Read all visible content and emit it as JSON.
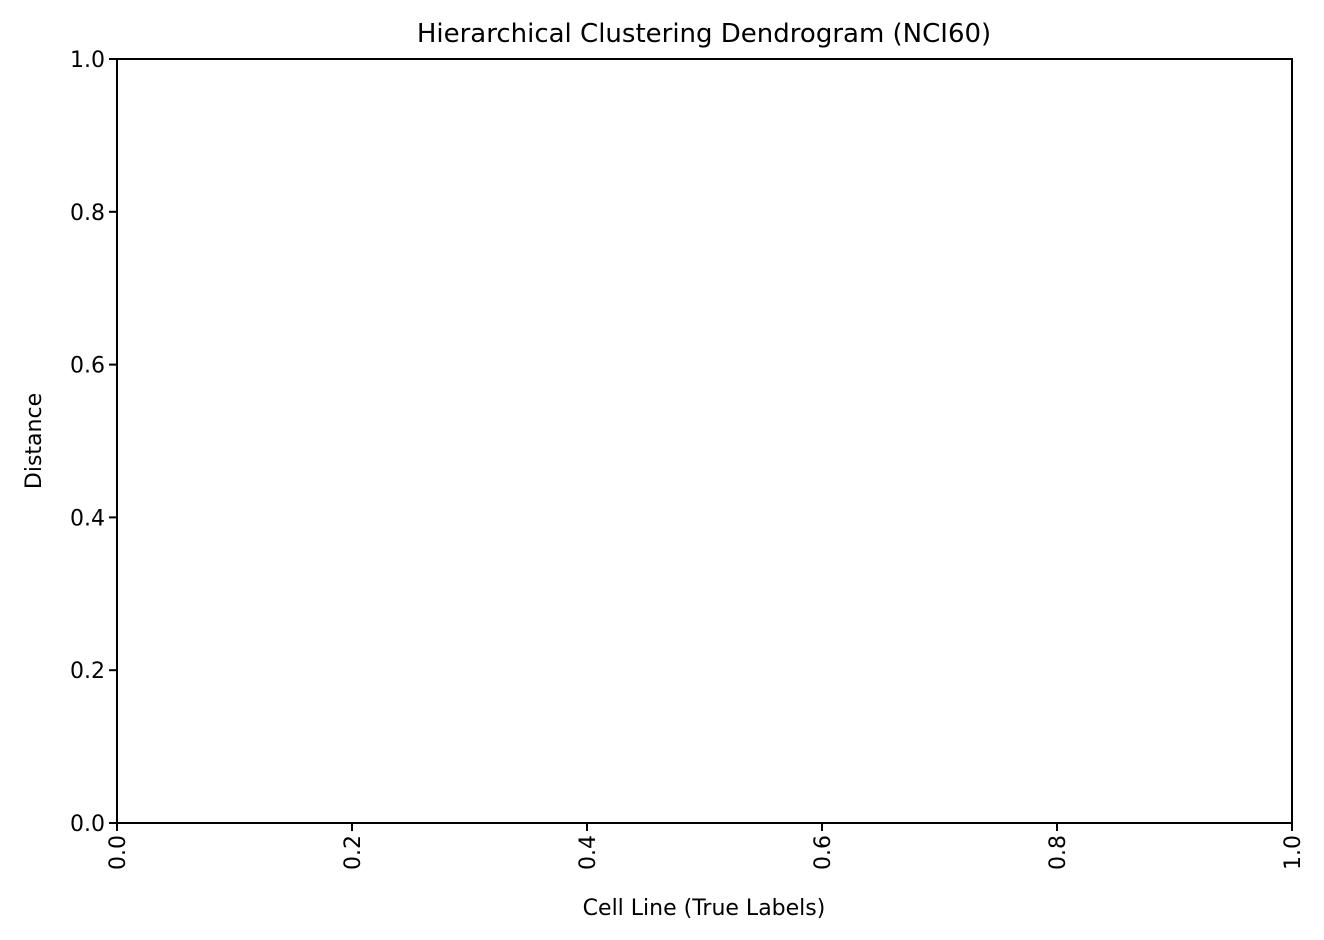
{
  "chart_data": {
    "type": "dendrogram",
    "title": "Hierarchical Clustering Dendrogram (NCI60)",
    "xlabel": "Cell Line (True Labels)",
    "ylabel": "Distance",
    "xlim": [
      0.0,
      1.0
    ],
    "ylim": [
      0.0,
      1.0
    ],
    "x_ticks": [
      0.0,
      0.2,
      0.4,
      0.6,
      0.8,
      1.0
    ],
    "x_tick_labels": [
      "0.0",
      "0.2",
      "0.4",
      "0.6",
      "0.8",
      "1.0"
    ],
    "y_ticks": [
      0.0,
      0.2,
      0.4,
      0.6,
      0.8,
      1.0
    ],
    "y_tick_labels": [
      "0.0",
      "0.2",
      "0.4",
      "0.6",
      "0.8",
      "1.0"
    ],
    "x_tick_rotation_deg": 90,
    "grid": false,
    "legend": "none",
    "series": []
  }
}
